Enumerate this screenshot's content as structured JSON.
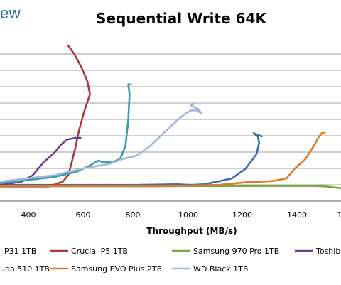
{
  "header": {
    "logo_text": "ew"
  },
  "chart_data": {
    "type": "line",
    "title": "Sequential Write 64K",
    "xlabel": "Throughput (MB/s)",
    "ylabel": "",
    "x_ticks": [
      "400",
      "600",
      "800",
      "1000",
      "1200",
      "1400",
      "1"
    ],
    "grid": true,
    "legend_position": "bottom",
    "series": [
      {
        "name": "P31 1TB",
        "color": "#3b6fa8",
        "points": [
          [
            300,
            5.0
          ],
          [
            500,
            5.0
          ],
          [
            800,
            5.0
          ],
          [
            950,
            5.2
          ],
          [
            1000,
            5.0
          ],
          [
            1050,
            5.2
          ],
          [
            1150,
            7.0
          ],
          [
            1200,
            10.0
          ],
          [
            1240,
            14.5
          ],
          [
            1250,
            18.0
          ],
          [
            1245,
            20.0
          ],
          [
            1230,
            21.0
          ],
          [
            1240,
            20.5
          ],
          [
            1260,
            20.0
          ]
        ]
      },
      {
        "name": "Crucial P5 1TB",
        "color": "#b03a3a",
        "points": [
          [
            300,
            4.5
          ],
          [
            480,
            4.5
          ],
          [
            530,
            6.0
          ],
          [
            550,
            8.0
          ],
          [
            560,
            11.0
          ],
          [
            575,
            16.0
          ],
          [
            590,
            22.0
          ],
          [
            610,
            28.0
          ],
          [
            630,
            33.0
          ],
          [
            620,
            37.0
          ],
          [
            600,
            41.0
          ],
          [
            575,
            45.0
          ],
          [
            550,
            48.0
          ]
        ]
      },
      {
        "name": "Samsung 970 Pro 1TB",
        "color": "#7aa83c",
        "points": [
          [
            300,
            4.6
          ],
          [
            800,
            4.6
          ],
          [
            1300,
            4.7
          ],
          [
            1450,
            4.7
          ],
          [
            1500,
            4.5
          ],
          [
            1550,
            4.0
          ]
        ]
      },
      {
        "name": "Toshiba",
        "color": "#6a3f8e",
        "points": [
          [
            300,
            5.0
          ],
          [
            380,
            6.0
          ],
          [
            420,
            8.0
          ],
          [
            460,
            12.0
          ],
          [
            500,
            15.0
          ],
          [
            525,
            17.5
          ],
          [
            545,
            19.0
          ],
          [
            575,
            19.5
          ],
          [
            595,
            19.5
          ]
        ]
      },
      {
        "name": "uda 510 1TB",
        "color": "#3d9bb0",
        "points": [
          [
            300,
            5.5
          ],
          [
            400,
            6.5
          ],
          [
            500,
            7.5
          ],
          [
            580,
            9.0
          ],
          [
            630,
            11.0
          ],
          [
            660,
            12.5
          ],
          [
            680,
            12.0
          ],
          [
            710,
            12.0
          ],
          [
            740,
            13.0
          ],
          [
            760,
            17.0
          ],
          [
            770,
            25.0
          ],
          [
            775,
            33.0
          ],
          [
            770,
            36.0
          ],
          [
            780,
            36.0
          ]
        ]
      },
      {
        "name": "Samsung EVO Plus 2TB",
        "color": "#e07b29",
        "points": [
          [
            300,
            4.6
          ],
          [
            900,
            4.6
          ],
          [
            1100,
            5.0
          ],
          [
            1200,
            5.8
          ],
          [
            1300,
            6.2
          ],
          [
            1350,
            7.0
          ],
          [
            1380,
            10.0
          ],
          [
            1420,
            13.0
          ],
          [
            1450,
            17.0
          ],
          [
            1470,
            20.0
          ],
          [
            1480,
            21.0
          ],
          [
            1490,
            21.0
          ]
        ]
      },
      {
        "name": "WD Black 1TB",
        "color": "#a3b8d8",
        "points": [
          [
            300,
            6.0
          ],
          [
            500,
            8.0
          ],
          [
            600,
            10.0
          ],
          [
            700,
            11.5
          ],
          [
            750,
            13.0
          ],
          [
            800,
            14.0
          ],
          [
            850,
            17.0
          ],
          [
            900,
            21.0
          ],
          [
            950,
            25.0
          ],
          [
            980,
            27.0
          ],
          [
            1000,
            28.0
          ],
          [
            1020,
            28.0
          ],
          [
            1040,
            27.0
          ],
          [
            1025,
            28.5
          ],
          [
            1000,
            29.5
          ],
          [
            1010,
            30.0
          ]
        ]
      }
    ]
  }
}
